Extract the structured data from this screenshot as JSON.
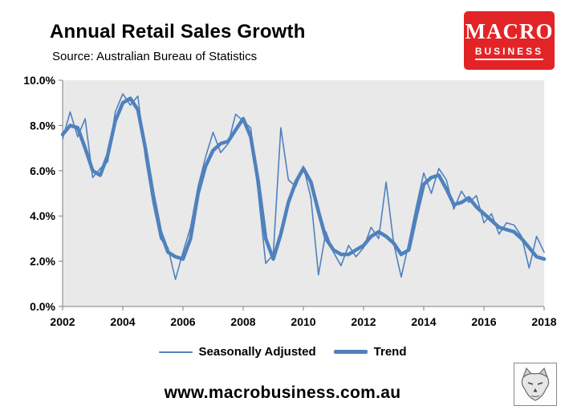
{
  "header": {
    "title": "Annual Retail Sales Growth",
    "subtitle": "Source: Australian Bureau of Statistics",
    "logo": {
      "line1": "MACRO",
      "line2": "BUSINESS",
      "bg_color": "#e32427",
      "text_color": "#ffffff"
    }
  },
  "legend": [
    {
      "label": "Seasonally Adjusted",
      "style": "thin"
    },
    {
      "label": "Trend",
      "style": "thick"
    }
  ],
  "footer": {
    "url": "www.macrobusiness.com.au"
  },
  "chart_data": {
    "type": "line",
    "title": "Annual Retail Sales Growth",
    "xlabel": "",
    "ylabel": "",
    "xlim": [
      2002,
      2018
    ],
    "ylim": [
      0,
      10
    ],
    "grid": false,
    "legend_position": "bottom",
    "plot_bg": "#e9e9e9",
    "color": "#4f81bd",
    "x_ticks": [
      2002,
      2004,
      2006,
      2008,
      2010,
      2012,
      2014,
      2016,
      2018
    ],
    "x_tick_labels": [
      "2002",
      "2004",
      "2006",
      "2008",
      "2010",
      "2012",
      "2014",
      "2016",
      "2018"
    ],
    "y_ticks": [
      0,
      2,
      4,
      6,
      8,
      10
    ],
    "y_tick_labels": [
      "0.0%",
      "2.0%",
      "4.0%",
      "6.0%",
      "8.0%",
      "10.0%"
    ],
    "x": [
      2002,
      2002.25,
      2002.5,
      2002.75,
      2003,
      2003.25,
      2003.5,
      2003.75,
      2004,
      2004.25,
      2004.5,
      2004.75,
      2005,
      2005.25,
      2005.5,
      2005.75,
      2006,
      2006.25,
      2006.5,
      2006.75,
      2007,
      2007.25,
      2007.5,
      2007.75,
      2008,
      2008.25,
      2008.5,
      2008.75,
      2009,
      2009.25,
      2009.5,
      2009.75,
      2010,
      2010.25,
      2010.5,
      2010.75,
      2011,
      2011.25,
      2011.5,
      2011.75,
      2012,
      2012.25,
      2012.5,
      2012.75,
      2013,
      2013.25,
      2013.5,
      2013.75,
      2014,
      2014.25,
      2014.5,
      2014.75,
      2015,
      2015.25,
      2015.5,
      2015.75,
      2016,
      2016.25,
      2016.5,
      2016.75,
      2017,
      2017.25,
      2017.5,
      2017.75,
      2018
    ],
    "series": [
      {
        "name": "Seasonally Adjusted",
        "line_width": 1.6,
        "values": [
          7.4,
          8.6,
          7.5,
          8.3,
          5.7,
          6.1,
          6.4,
          8.6,
          9.4,
          8.9,
          9.3,
          6.6,
          4.6,
          3.0,
          2.6,
          1.2,
          2.4,
          3.5,
          5.3,
          6.6,
          7.7,
          6.8,
          7.2,
          8.5,
          8.2,
          7.9,
          5.0,
          1.9,
          2.3,
          7.9,
          5.6,
          5.3,
          6.2,
          4.8,
          1.4,
          3.3,
          2.4,
          1.8,
          2.7,
          2.2,
          2.6,
          3.5,
          3.0,
          5.5,
          2.8,
          1.3,
          2.8,
          4.4,
          5.9,
          5.0,
          6.1,
          5.6,
          4.3,
          5.1,
          4.6,
          4.9,
          3.7,
          4.1,
          3.2,
          3.7,
          3.6,
          3.1,
          1.7,
          3.1,
          2.4
        ]
      },
      {
        "name": "Trend",
        "line_width": 4.5,
        "values": [
          7.6,
          8.0,
          7.9,
          7.0,
          6.0,
          5.8,
          6.7,
          8.2,
          9.0,
          9.2,
          8.7,
          7.0,
          5.0,
          3.3,
          2.4,
          2.2,
          2.1,
          3.0,
          5.0,
          6.2,
          6.9,
          7.2,
          7.3,
          7.8,
          8.3,
          7.5,
          5.5,
          3.0,
          2.1,
          3.2,
          4.6,
          5.5,
          6.1,
          5.5,
          4.2,
          3.0,
          2.5,
          2.3,
          2.3,
          2.5,
          2.7,
          3.1,
          3.3,
          3.1,
          2.8,
          2.3,
          2.5,
          4.0,
          5.4,
          5.7,
          5.8,
          5.2,
          4.5,
          4.6,
          4.8,
          4.4,
          4.1,
          3.8,
          3.5,
          3.4,
          3.3,
          3.0,
          2.6,
          2.2,
          2.1
        ]
      }
    ]
  }
}
